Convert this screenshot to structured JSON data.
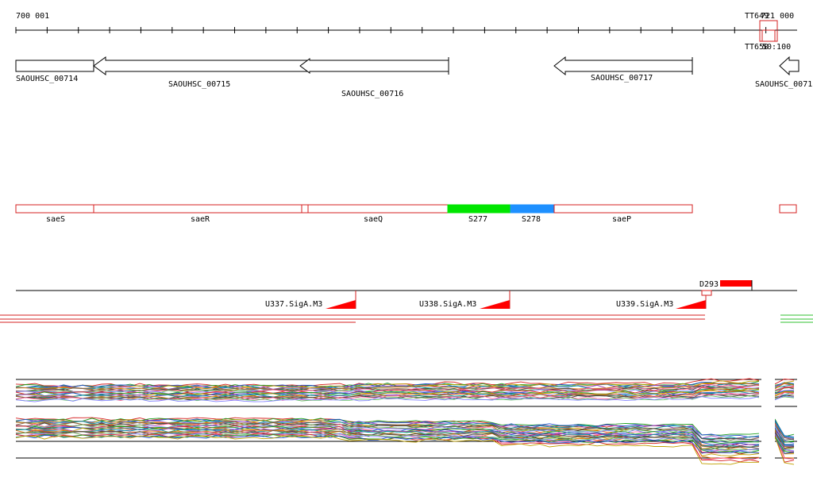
{
  "ruler": {
    "start_label": "700 001",
    "end_label": "721 000",
    "marker_top_label": "TT649",
    "marker_bottom_label": "TT650",
    "marker_bottom_suffix": "50:100"
  },
  "genes": [
    {
      "name": "SAOUHSC_00714",
      "strand": "-"
    },
    {
      "name": "SAOUHSC_00715",
      "strand": "-"
    },
    {
      "name": "SAOUHSC_00716",
      "strand": "-"
    },
    {
      "name": "SAOUHSC_00717",
      "strand": "-"
    },
    {
      "name": "SAOUHSC_0071",
      "strand": "-"
    }
  ],
  "features": [
    {
      "name": "saeS",
      "color": "#ffffff"
    },
    {
      "name": "saeR",
      "color": "#ffffff"
    },
    {
      "name": "saeQ",
      "color": "#ffffff"
    },
    {
      "name": "S277",
      "color": "#00e600"
    },
    {
      "name": "S278",
      "color": "#1e90ff"
    },
    {
      "name": "saeP",
      "color": "#ffffff"
    }
  ],
  "regulatory": [
    {
      "name": "U337.SigA.M3"
    },
    {
      "name": "U338.SigA.M3"
    },
    {
      "name": "U339.SigA.M3"
    },
    {
      "name": "D293"
    }
  ],
  "colors": {
    "feature_outline": "#d62020",
    "terminator": "#ff0000",
    "green_bar": "#00e600",
    "blue_bar": "#1e90ff"
  }
}
